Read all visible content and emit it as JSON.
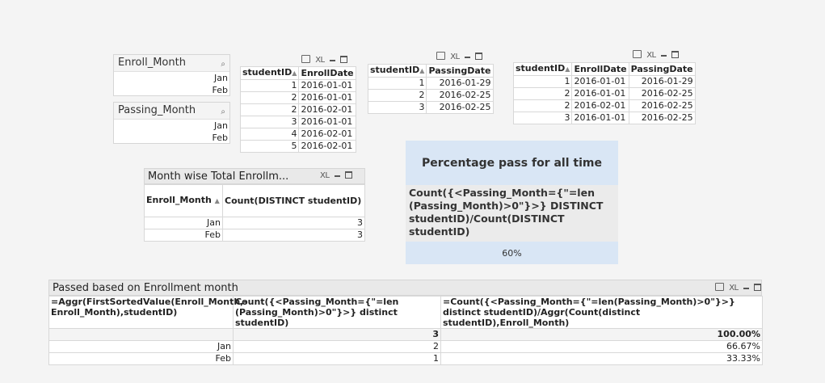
{
  "enroll_listbox": {
    "title": "Enroll_Month",
    "items": [
      "Jan",
      "Feb"
    ]
  },
  "passing_listbox": {
    "title": "Passing_Month",
    "items": [
      "Jan",
      "Feb"
    ]
  },
  "table_icons": {
    "xl": "XL"
  },
  "enroll_table": {
    "headers": [
      "studentID",
      "EnrollDate"
    ],
    "rows": [
      [
        "1",
        "2016-01-01"
      ],
      [
        "2",
        "2016-01-01"
      ],
      [
        "2",
        "2016-02-01"
      ],
      [
        "3",
        "2016-01-01"
      ],
      [
        "4",
        "2016-02-01"
      ],
      [
        "5",
        "2016-02-01"
      ]
    ]
  },
  "passing_table": {
    "headers": [
      "studentID",
      "PassingDate"
    ],
    "rows": [
      [
        "1",
        "2016-01-29"
      ],
      [
        "2",
        "2016-02-25"
      ],
      [
        "3",
        "2016-02-25"
      ]
    ]
  },
  "combined_table": {
    "headers": [
      "studentID",
      "EnrollDate",
      "PassingDate"
    ],
    "rows": [
      [
        "1",
        "2016-01-01",
        "2016-01-29"
      ],
      [
        "2",
        "2016-01-01",
        "2016-02-25"
      ],
      [
        "2",
        "2016-02-01",
        "2016-02-25"
      ],
      [
        "3",
        "2016-01-01",
        "2016-02-25"
      ]
    ]
  },
  "month_wise": {
    "title": "Month wise Total Enrollm...",
    "headers": [
      "Enroll_Month",
      "Count(DISTINCT studentID)"
    ],
    "rows": [
      [
        "Jan",
        "3"
      ],
      [
        "Feb",
        "3"
      ]
    ]
  },
  "percentage_box": {
    "title": "Percentage pass for all time",
    "expression": "Count({<Passing_Month={\"=len (Passing_Month)>0\"}>}  DISTINCT studentID)/Count(DISTINCT studentID)",
    "value": "60%"
  },
  "passed_table": {
    "title": "Passed based on Enrollment month",
    "headers": [
      "=Aggr(FirstSortedValue(Enroll_Month,-Enroll_Month),studentID)",
      "Count({<Passing_Month={\"=len (Passing_Month)>0\"}>} distinct studentID)",
      "=Count({<Passing_Month={\"=len(Passing_Month)>0\"}>} distinct studentID)/Aggr(Count(distinct studentID),Enroll_Month)"
    ],
    "total": [
      "",
      "3",
      "100.00%"
    ],
    "rows": [
      [
        "Jan",
        "2",
        "66.67%"
      ],
      [
        "Feb",
        "1",
        "33.33%"
      ]
    ]
  }
}
